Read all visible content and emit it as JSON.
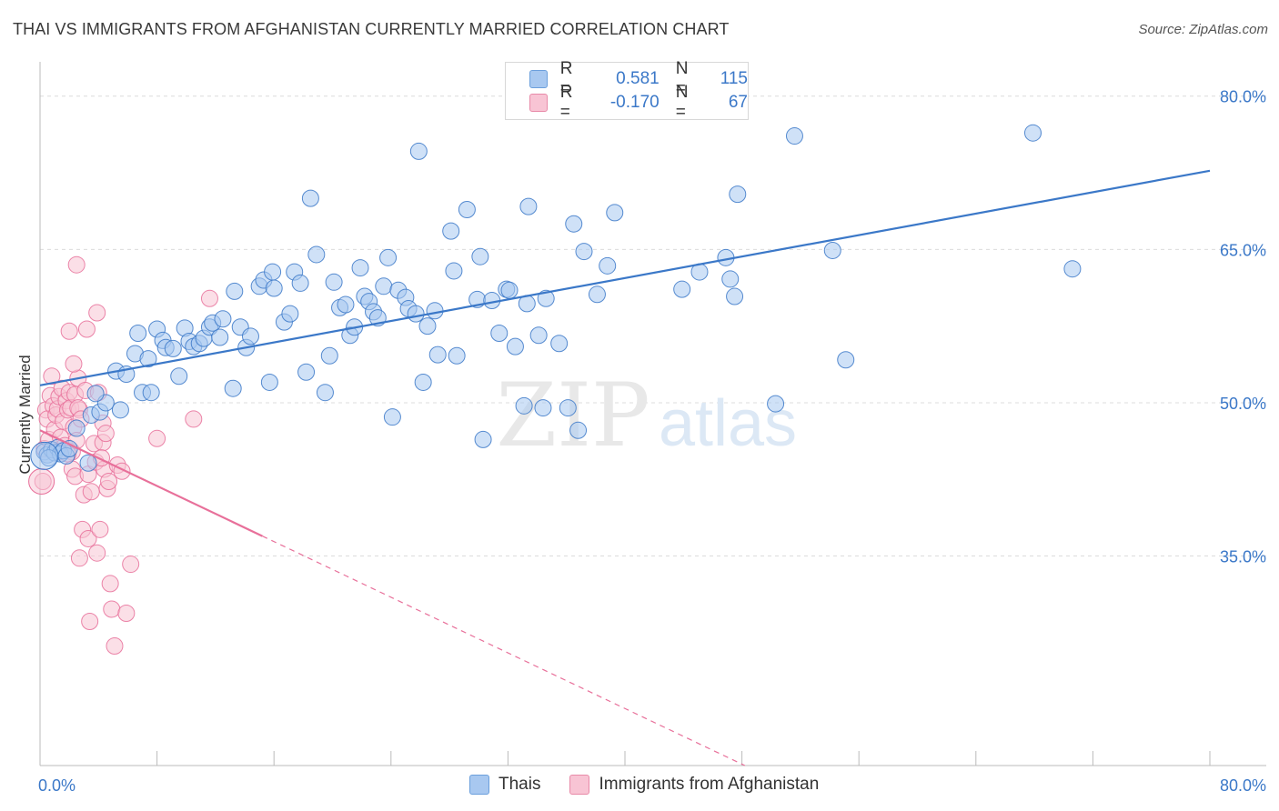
{
  "header": {
    "title": "THAI VS IMMIGRANTS FROM AFGHANISTAN CURRENTLY MARRIED CORRELATION CHART",
    "source": "Source: ZipAtlas.com"
  },
  "watermark": {
    "zip": "ZIP",
    "atlas": "atlas"
  },
  "legend": {
    "rows": [
      {
        "r_label": "R =",
        "r_value": "0.581",
        "n_label": "N =",
        "n_value": "115",
        "color": "#a8c8f0",
        "border": "#6b9fdc"
      },
      {
        "r_label": "R =",
        "r_value": "-0.170",
        "n_label": "N =",
        "n_value": "67",
        "color": "#f8c4d4",
        "border": "#e88aa8"
      }
    ]
  },
  "bottom_legend": {
    "thais": "Thais",
    "afghan": "Immigrants from Afghanistan"
  },
  "chart_data": {
    "type": "scatter",
    "title": "THAI VS IMMIGRANTS FROM AFGHANISTAN CURRENTLY MARRIED CORRELATION CHART",
    "xlabel": "",
    "ylabel": "Currently Married",
    "xlim": [
      0,
      80
    ],
    "ylim": [
      14.5,
      83
    ],
    "x_tick_labels": [
      {
        "value": 0,
        "label": "0.0%"
      },
      {
        "value": 80,
        "label": "80.0%"
      }
    ],
    "y_tick_labels": [
      {
        "value": 80,
        "label": "80.0%"
      },
      {
        "value": 65,
        "label": "65.0%"
      },
      {
        "value": 50,
        "label": "50.0%"
      },
      {
        "value": 35,
        "label": "35.0%"
      }
    ],
    "grid": true,
    "colors": {
      "thais": "#3b78c8",
      "thais_fill": "#a8c8f0",
      "afghan": "#e8709a",
      "afghan_fill": "#f8c4d4",
      "axis_label": "#3b78c8"
    },
    "series": [
      {
        "name": "Thais",
        "trendline": {
          "x0": 0,
          "y0": 51.7,
          "x1": 80,
          "y1": 72.7,
          "dashed_from": null
        },
        "points": [
          [
            0.3,
            45.2
          ],
          [
            0.5,
            44.9
          ],
          [
            0.8,
            45.4
          ],
          [
            1.0,
            45.1
          ],
          [
            1.2,
            45.6
          ],
          [
            1.4,
            45.0
          ],
          [
            1.6,
            45.3
          ],
          [
            1.8,
            44.8
          ],
          [
            2.0,
            45.5
          ],
          [
            0.6,
            44.6
          ],
          [
            2.5,
            47.5
          ],
          [
            3.3,
            44.1
          ],
          [
            3.5,
            48.8
          ],
          [
            4.1,
            49.1
          ],
          [
            4.5,
            50.0
          ],
          [
            3.8,
            50.9
          ],
          [
            5.5,
            49.3
          ],
          [
            5.2,
            53.1
          ],
          [
            5.9,
            52.8
          ],
          [
            6.5,
            54.8
          ],
          [
            6.7,
            56.8
          ],
          [
            7.0,
            51.0
          ],
          [
            7.4,
            54.3
          ],
          [
            7.6,
            51.0
          ],
          [
            8.0,
            57.2
          ],
          [
            8.4,
            56.1
          ],
          [
            8.6,
            55.4
          ],
          [
            9.1,
            55.3
          ],
          [
            9.5,
            52.6
          ],
          [
            9.9,
            57.3
          ],
          [
            10.2,
            56.0
          ],
          [
            10.5,
            55.5
          ],
          [
            10.9,
            55.8
          ],
          [
            11.2,
            56.3
          ],
          [
            11.6,
            57.4
          ],
          [
            11.8,
            57.8
          ],
          [
            12.3,
            56.4
          ],
          [
            12.5,
            58.2
          ],
          [
            13.2,
            51.4
          ],
          [
            13.3,
            60.9
          ],
          [
            13.7,
            57.4
          ],
          [
            14.1,
            55.4
          ],
          [
            14.4,
            56.5
          ],
          [
            15.0,
            61.4
          ],
          [
            15.3,
            62.0
          ],
          [
            15.7,
            52.0
          ],
          [
            15.9,
            62.8
          ],
          [
            16.0,
            61.2
          ],
          [
            16.7,
            57.9
          ],
          [
            17.1,
            58.7
          ],
          [
            17.4,
            62.8
          ],
          [
            17.8,
            61.7
          ],
          [
            18.2,
            53.0
          ],
          [
            18.5,
            70.0
          ],
          [
            18.9,
            64.5
          ],
          [
            19.5,
            51.0
          ],
          [
            19.8,
            54.6
          ],
          [
            20.1,
            61.8
          ],
          [
            20.5,
            59.3
          ],
          [
            20.9,
            59.6
          ],
          [
            21.2,
            56.6
          ],
          [
            21.5,
            57.4
          ],
          [
            21.9,
            63.2
          ],
          [
            22.2,
            60.4
          ],
          [
            22.5,
            59.9
          ],
          [
            22.8,
            58.9
          ],
          [
            23.1,
            58.3
          ],
          [
            23.5,
            61.4
          ],
          [
            23.8,
            64.2
          ],
          [
            24.1,
            48.6
          ],
          [
            24.5,
            61.0
          ],
          [
            25.0,
            60.3
          ],
          [
            25.2,
            59.2
          ],
          [
            25.7,
            58.7
          ],
          [
            25.9,
            74.6
          ],
          [
            26.2,
            52.0
          ],
          [
            26.5,
            57.5
          ],
          [
            27.0,
            59.0
          ],
          [
            27.2,
            54.7
          ],
          [
            28.1,
            66.8
          ],
          [
            28.3,
            62.9
          ],
          [
            28.5,
            54.6
          ],
          [
            29.2,
            68.9
          ],
          [
            29.9,
            60.1
          ],
          [
            30.1,
            64.3
          ],
          [
            30.3,
            46.4
          ],
          [
            30.9,
            60.0
          ],
          [
            31.4,
            56.8
          ],
          [
            31.9,
            61.1
          ],
          [
            32.1,
            61.0
          ],
          [
            32.5,
            55.5
          ],
          [
            33.1,
            49.7
          ],
          [
            33.3,
            59.7
          ],
          [
            33.4,
            69.2
          ],
          [
            34.1,
            56.6
          ],
          [
            34.4,
            49.5
          ],
          [
            34.6,
            60.2
          ],
          [
            35.5,
            55.8
          ],
          [
            36.1,
            49.5
          ],
          [
            36.5,
            67.5
          ],
          [
            36.8,
            47.3
          ],
          [
            37.2,
            64.8
          ],
          [
            38.1,
            60.6
          ],
          [
            38.8,
            63.4
          ],
          [
            39.3,
            68.6
          ],
          [
            43.9,
            61.1
          ],
          [
            45.1,
            62.8
          ],
          [
            46.9,
            64.2
          ],
          [
            47.2,
            62.1
          ],
          [
            47.5,
            60.4
          ],
          [
            47.7,
            70.4
          ],
          [
            50.3,
            49.9
          ],
          [
            51.6,
            76.1
          ],
          [
            54.2,
            64.9
          ],
          [
            55.1,
            54.2
          ],
          [
            67.9,
            76.4
          ],
          [
            70.6,
            63.1
          ]
        ]
      },
      {
        "name": "Immigrants from Afghanistan",
        "trendline": {
          "x0": 0,
          "y0": 47.3,
          "x1": 48.2,
          "y1": 14.5,
          "solid_until_x": 15.2
        },
        "points": [
          [
            0.2,
            42.3
          ],
          [
            0.3,
            45.5
          ],
          [
            0.4,
            49.3
          ],
          [
            0.5,
            48.4
          ],
          [
            0.6,
            46.4
          ],
          [
            0.7,
            50.7
          ],
          [
            0.8,
            52.6
          ],
          [
            0.9,
            49.7
          ],
          [
            1.0,
            47.4
          ],
          [
            1.1,
            48.8
          ],
          [
            1.2,
            49.4
          ],
          [
            1.3,
            50.6
          ],
          [
            1.4,
            46.6
          ],
          [
            1.5,
            51.4
          ],
          [
            1.6,
            48.2
          ],
          [
            1.7,
            45.8
          ],
          [
            1.8,
            50.2
          ],
          [
            1.9,
            49.3
          ],
          [
            2.0,
            51.0
          ],
          [
            2.1,
            49.5
          ],
          [
            2.2,
            45.2
          ],
          [
            2.3,
            47.6
          ],
          [
            2.4,
            50.8
          ],
          [
            2.5,
            46.3
          ],
          [
            2.6,
            52.4
          ],
          [
            2.7,
            49.3
          ],
          [
            1.9,
            45.0
          ],
          [
            2.0,
            57.0
          ],
          [
            2.2,
            43.5
          ],
          [
            2.3,
            53.8
          ],
          [
            2.4,
            42.8
          ],
          [
            2.6,
            49.5
          ],
          [
            2.7,
            34.8
          ],
          [
            2.8,
            48.4
          ],
          [
            2.9,
            37.6
          ],
          [
            3.0,
            41.0
          ],
          [
            3.1,
            51.2
          ],
          [
            3.3,
            36.7
          ],
          [
            3.4,
            28.6
          ],
          [
            3.2,
            57.2
          ],
          [
            3.5,
            41.3
          ],
          [
            3.3,
            43.0
          ],
          [
            3.7,
            46.0
          ],
          [
            3.8,
            44.2
          ],
          [
            3.9,
            35.3
          ],
          [
            4.1,
            37.6
          ],
          [
            4.3,
            48.0
          ],
          [
            3.9,
            58.8
          ],
          [
            4.0,
            51.0
          ],
          [
            4.3,
            46.1
          ],
          [
            4.4,
            43.5
          ],
          [
            4.5,
            47.0
          ],
          [
            4.6,
            41.6
          ],
          [
            4.7,
            42.3
          ],
          [
            4.8,
            32.3
          ],
          [
            4.9,
            29.8
          ],
          [
            5.1,
            26.2
          ],
          [
            5.3,
            43.9
          ],
          [
            5.6,
            43.3
          ],
          [
            5.9,
            29.4
          ],
          [
            6.2,
            34.2
          ],
          [
            2.5,
            63.5
          ],
          [
            8.0,
            46.5
          ],
          [
            10.5,
            48.4
          ],
          [
            11.6,
            60.2
          ],
          [
            4.2,
            44.6
          ],
          [
            1.3,
            45.2
          ]
        ]
      }
    ]
  }
}
